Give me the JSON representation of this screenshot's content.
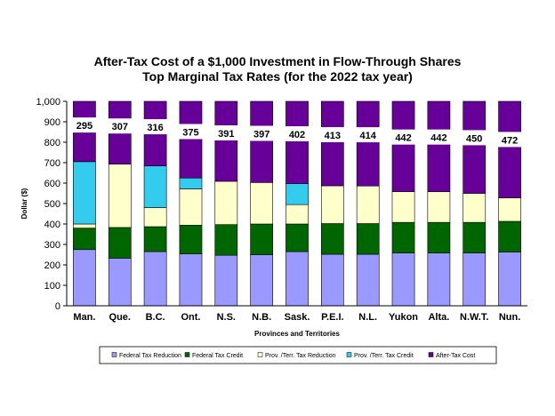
{
  "chart_data": {
    "type": "bar",
    "stacked": true,
    "title": "After-Tax Cost of a $1,000 Investment in Flow-Through Shares",
    "subtitle": "Top Marginal Tax Rates (for the 2022 tax year)",
    "xlabel": "Provinces and Territories",
    "ylabel": "Dollar ($)",
    "ylim": [
      0,
      1000
    ],
    "yticks": [
      "0",
      "100",
      "200",
      "300",
      "400",
      "500",
      "600",
      "700",
      "800",
      "900",
      "1,000"
    ],
    "grid": false,
    "legend_position": "bottom",
    "categories": [
      "Man.",
      "Que.",
      "B.C.",
      "Ont.",
      "N.S.",
      "N.B.",
      "Sask.",
      "P.E.I.",
      "N.L.",
      "Yukon",
      "Alta.",
      "N.W.T.",
      "Nun."
    ],
    "series": [
      {
        "name": "Federal Tax Reduction",
        "color": "#9999FF",
        "values": [
          275,
          233,
          265,
          254,
          247,
          250,
          265,
          252,
          252,
          258,
          258,
          258,
          263
        ]
      },
      {
        "name": "Federal Tax Credit",
        "color": "#006600",
        "values": [
          105,
          150,
          122,
          140,
          150,
          150,
          135,
          150,
          150,
          150,
          150,
          150,
          150
        ]
      },
      {
        "name": "Prov. /Terr. Tax Reduction",
        "color": "#FFFFCC",
        "values": [
          20,
          310,
          93,
          178,
          212,
          203,
          95,
          185,
          184,
          150,
          150,
          142,
          115
        ]
      },
      {
        "name": "Prov. /Terr. Tax Credit",
        "color": "#33CCEE",
        "values": [
          305,
          0,
          204,
          53,
          0,
          0,
          103,
          0,
          0,
          0,
          0,
          0,
          0
        ]
      },
      {
        "name": "After-Tax Cost",
        "color": "#660099",
        "values": [
          295,
          307,
          316,
          375,
          391,
          397,
          402,
          413,
          414,
          442,
          442,
          450,
          472
        ]
      }
    ],
    "data_labels": [
      "295",
      "307",
      "316",
      "375",
      "391",
      "397",
      "402",
      "413",
      "414",
      "442",
      "442",
      "450",
      "472"
    ]
  }
}
